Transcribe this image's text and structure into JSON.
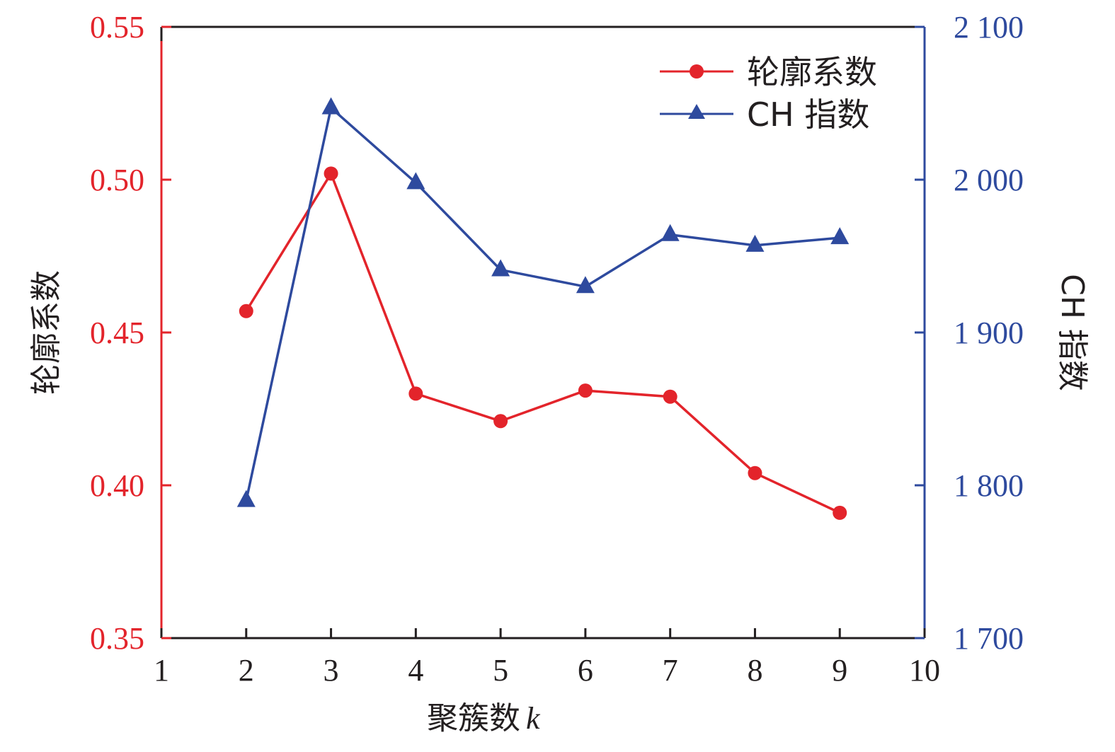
{
  "chart_data": {
    "type": "line",
    "x": [
      2,
      3,
      4,
      5,
      6,
      7,
      8,
      9
    ],
    "xlim": [
      1,
      10
    ],
    "xticks": [
      "1",
      "2",
      "3",
      "4",
      "5",
      "6",
      "7",
      "8",
      "9",
      "10"
    ],
    "xlabel": "聚簇数",
    "xlabel_var": "k",
    "ylabel_left": "轮廓系数",
    "ylabel_right": "CH 指数",
    "ylim_left": [
      0.35,
      0.55
    ],
    "yticks_left": [
      "0.35",
      "0.40",
      "0.45",
      "0.50",
      "0.55"
    ],
    "ylim_right": [
      1700,
      2100
    ],
    "yticks_right": [
      "1 700",
      "1 800",
      "1 900",
      "2 000",
      "2 100"
    ],
    "grid": false,
    "legend_position": "top-right",
    "series": [
      {
        "name": "轮廓系数",
        "axis": "left",
        "marker": "circle",
        "color": "#e3242b",
        "values": [
          0.457,
          0.502,
          0.43,
          0.421,
          0.431,
          0.429,
          0.404,
          0.391
        ]
      },
      {
        "name": "CH 指数",
        "axis": "right",
        "marker": "triangle",
        "color": "#2e4a9e",
        "values": [
          1790,
          2047,
          1998,
          1941,
          1930,
          1964,
          1957,
          1962
        ]
      }
    ]
  }
}
